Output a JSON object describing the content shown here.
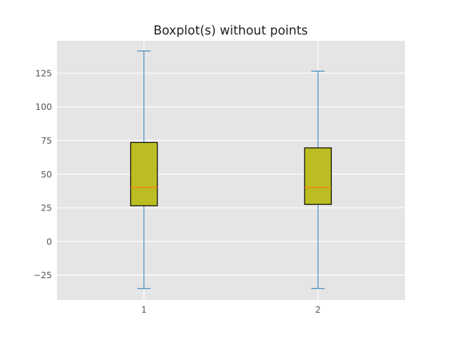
{
  "chart_data": {
    "type": "boxplot",
    "title": "Boxplot(s) without points",
    "xlabel": "",
    "ylabel": "",
    "categories": [
      "1",
      "2"
    ],
    "boxes": [
      {
        "category": "1",
        "whisker_low": -35,
        "q1": 26.5,
        "median": 40,
        "q3": 73.5,
        "whisker_high": 141.5
      },
      {
        "category": "2",
        "whisker_low": -35,
        "q1": 27.5,
        "median": 40,
        "q3": 69.5,
        "whisker_high": 126.5
      }
    ],
    "ylim": [
      -43.5,
      149
    ],
    "yticks": [
      -25,
      0,
      25,
      50,
      75,
      100,
      125
    ],
    "ytick_labels": [
      "−25",
      "0",
      "25",
      "50",
      "75",
      "100",
      "125"
    ],
    "grid": true,
    "colors": {
      "plot_background": "#e5e5e5",
      "grid": "#ffffff",
      "box_fill": "#bcbd22",
      "box_edge": "#000000",
      "median": "#ff7f0e",
      "whisker": "#1f77b4"
    }
  }
}
